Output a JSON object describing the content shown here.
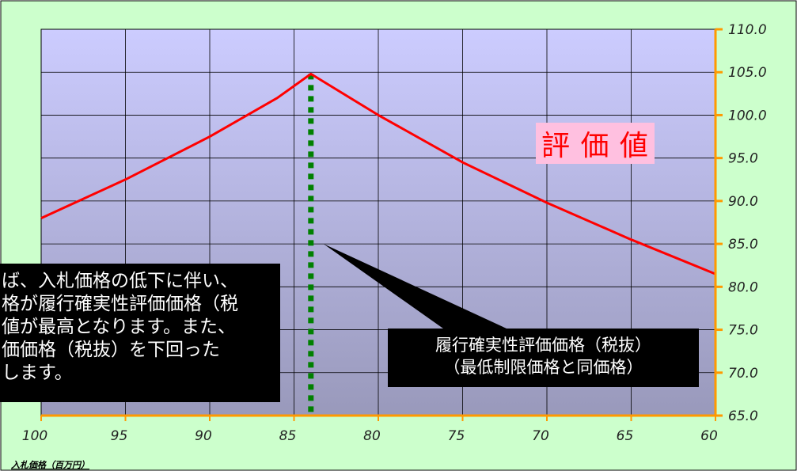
{
  "chart_data": {
    "type": "line",
    "xlabel": "入札価格（百万円）",
    "ylabel": "",
    "x_ticks": [
      100,
      95,
      90,
      85,
      80,
      75,
      70,
      65,
      60
    ],
    "xlim": [
      100,
      60
    ],
    "y_ticks": [
      "110.0",
      "105.0",
      "100.0",
      "95.0",
      "90.0",
      "85.0",
      "80.0",
      "75.0",
      "70.0",
      "65.0"
    ],
    "ylim": [
      65,
      110
    ],
    "grid": true,
    "series": [
      {
        "color": "#ff0000",
        "points": [
          {
            "x": 100,
            "y": 88.0
          },
          {
            "x": 95,
            "y": 92.5
          },
          {
            "x": 90,
            "y": 97.5
          },
          {
            "x": 86,
            "y": 102.0
          },
          {
            "x": 84,
            "y": 104.8
          },
          {
            "x": 80,
            "y": 100.0
          },
          {
            "x": 75,
            "y": 94.5
          },
          {
            "x": 70,
            "y": 89.8
          },
          {
            "x": 65,
            "y": 85.5
          },
          {
            "x": 60,
            "y": 81.5
          }
        ]
      }
    ],
    "reference_line": {
      "x": 84,
      "color": "#008000",
      "style": "dotted"
    },
    "series_label": {
      "text": "評 価 値",
      "color": "#ff0000",
      "background": "#ffc0e0"
    },
    "callout_right": {
      "lines": [
        "履行確実性評価価格（税抜）",
        "（最低制限価格と同価格）"
      ]
    },
    "callout_left": {
      "lines": [
        "ば、入札価格の低下に伴い、",
        "格が履行確実性評価価格（税",
        "値が最高となります。また、",
        "価価格（税抜）を下回った",
        "します。"
      ]
    },
    "colors": {
      "outer_background": "#ccffcc",
      "plot_top": "#ccccff",
      "plot_bottom": "#9999bb",
      "axis": "#ff9900",
      "grid": "#000000"
    }
  }
}
